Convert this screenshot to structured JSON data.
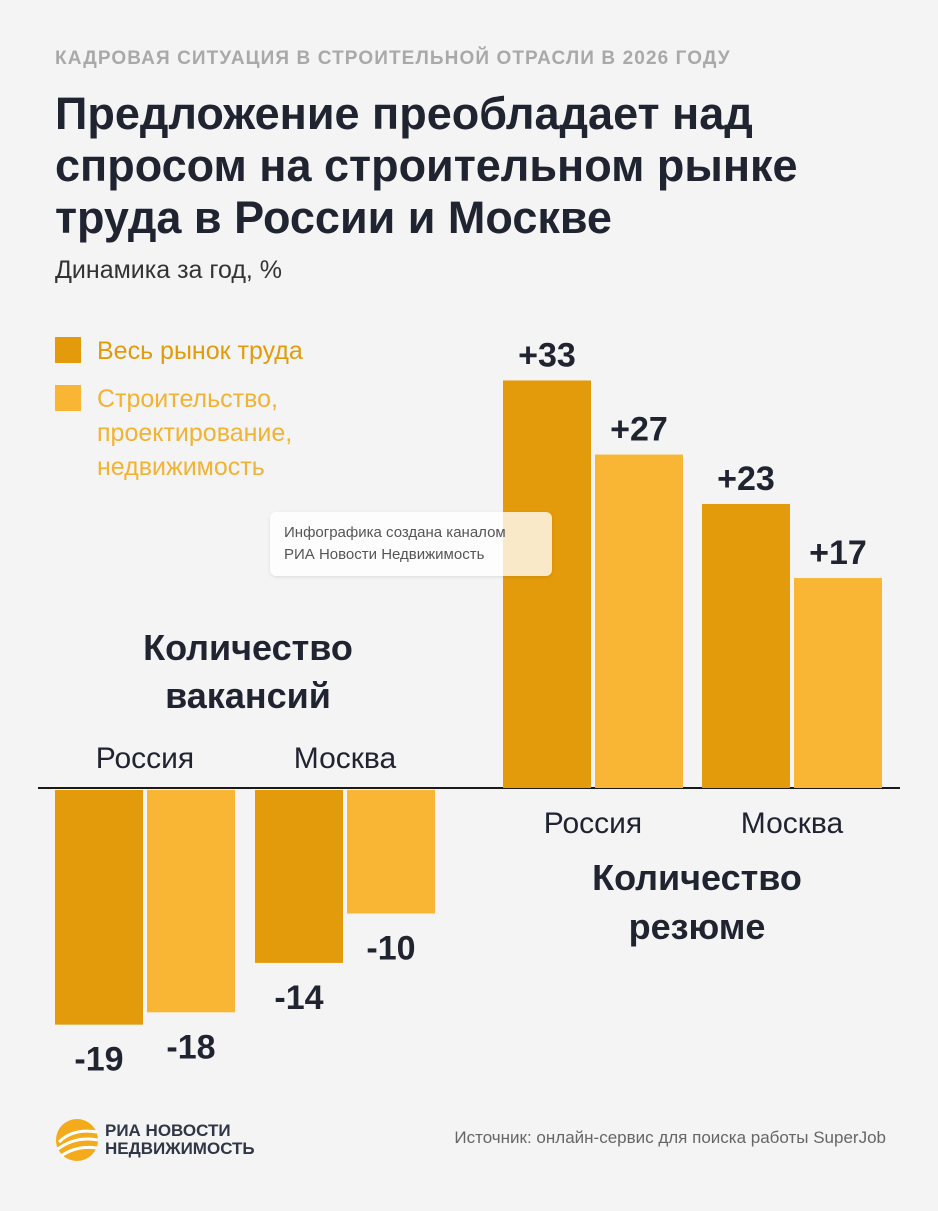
{
  "header": {
    "kicker": "КАДРОВАЯ СИТУАЦИЯ В СТРОИТЕЛЬНОЙ ОТРАСЛИ В 2026 ГОДУ",
    "title": "Предложение преобладает над спросом на строительном рынке труда в России и Москве",
    "subtitle": "Динамика за год, %"
  },
  "colors": {
    "dark": "#e39b0b",
    "light": "#f9b634",
    "text": "#202330"
  },
  "watermark": {
    "line1": "Инфографика создана каналом",
    "line2": "РИА Новости Недвижимость"
  },
  "footer": {
    "logo_line1": "РИА НОВОСТИ",
    "logo_line2": "НЕДВИЖИМОСТЬ",
    "source": "Источник: онлайн-сервис для поиска работы SuperJob"
  },
  "chart_data": [
    {
      "type": "bar",
      "title": "Количество вакансий",
      "categories": [
        "Россия",
        "Москва"
      ],
      "series": [
        {
          "name": "Весь рынок труда",
          "values": [
            -19,
            -14
          ],
          "labels": [
            "-19",
            "-14"
          ],
          "color": "#e39b0b"
        },
        {
          "name": "Строительство,\nпроектирование,\nнедвижимость",
          "values": [
            -18,
            -10
          ],
          "labels": [
            "-18",
            "-10"
          ],
          "color": "#f9b634"
        }
      ],
      "ylim": [
        -19,
        0
      ]
    },
    {
      "type": "bar",
      "title": "Количество резюме",
      "categories": [
        "Россия",
        "Москва"
      ],
      "series": [
        {
          "name": "Весь рынок труда",
          "values": [
            33,
            23
          ],
          "labels": [
            "+33",
            "+23"
          ],
          "color": "#e39b0b"
        },
        {
          "name": "Строительство,\nпроектирование,\nнедвижимость",
          "values": [
            27,
            17
          ],
          "labels": [
            "+27",
            "+17"
          ],
          "color": "#f9b634"
        }
      ],
      "ylim": [
        0,
        33
      ]
    }
  ]
}
